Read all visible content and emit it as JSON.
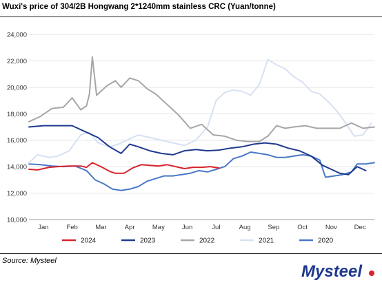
{
  "title": "Wuxi's price of 304/2B Hongwang 2*1240mm stainless CRC (Yuan/tonne)",
  "source": "Source: Mysteel",
  "logo_text": "Mysteel",
  "chart_data": {
    "type": "line",
    "title": "Wuxi's price of 304/2B Hongwang 2*1240mm stainless CRC (Yuan/tonne)",
    "xlabel": "",
    "ylabel": "",
    "x_ticks": [
      "Jan",
      "Feb",
      "Mar",
      "Apr",
      "May",
      "Jun",
      "Jul",
      "Aug",
      "Sep",
      "Oct",
      "Nov",
      "Dec"
    ],
    "y_ticks": [
      10000,
      12000,
      14000,
      16000,
      18000,
      20000,
      22000,
      24000
    ],
    "ylim": [
      10000,
      24000
    ],
    "xlim": [
      0,
      12
    ],
    "grid": true,
    "legend_position": "bottom",
    "series": [
      {
        "name": "2024",
        "color": "#d9232d",
        "points": [
          [
            0,
            13800
          ],
          [
            0.3,
            13750
          ],
          [
            0.7,
            13950
          ],
          [
            1.0,
            14000
          ],
          [
            1.4,
            14050
          ],
          [
            1.8,
            14050
          ],
          [
            2.0,
            13950
          ],
          [
            2.2,
            14300
          ],
          [
            2.5,
            14000
          ],
          [
            2.8,
            13650
          ],
          [
            3.0,
            13500
          ],
          [
            3.3,
            13500
          ],
          [
            3.6,
            13900
          ],
          [
            3.9,
            14150
          ],
          [
            4.2,
            14100
          ],
          [
            4.5,
            14050
          ],
          [
            4.8,
            14150
          ],
          [
            5.1,
            14000
          ],
          [
            5.4,
            13850
          ],
          [
            5.7,
            13950
          ],
          [
            6.0,
            13950
          ],
          [
            6.3,
            14000
          ],
          [
            6.6,
            13900
          ]
        ]
      },
      {
        "name": "2023",
        "color": "#1f3a8c",
        "points": [
          [
            0,
            17000
          ],
          [
            0.5,
            17100
          ],
          [
            1.0,
            17100
          ],
          [
            1.5,
            17100
          ],
          [
            2.0,
            16600
          ],
          [
            2.4,
            16200
          ],
          [
            2.8,
            15500
          ],
          [
            3.2,
            15000
          ],
          [
            3.5,
            15700
          ],
          [
            3.8,
            15500
          ],
          [
            4.2,
            15200
          ],
          [
            4.6,
            15000
          ],
          [
            5.0,
            14900
          ],
          [
            5.4,
            15200
          ],
          [
            5.8,
            15300
          ],
          [
            6.2,
            15200
          ],
          [
            6.6,
            15250
          ],
          [
            7.0,
            15400
          ],
          [
            7.4,
            15500
          ],
          [
            7.8,
            15700
          ],
          [
            8.2,
            15800
          ],
          [
            8.6,
            15700
          ],
          [
            9.0,
            15400
          ],
          [
            9.4,
            15200
          ],
          [
            9.8,
            14800
          ],
          [
            10.2,
            14100
          ],
          [
            10.5,
            13800
          ],
          [
            10.8,
            13500
          ],
          [
            11.1,
            13400
          ],
          [
            11.4,
            14000
          ],
          [
            11.7,
            13700
          ]
        ]
      },
      {
        "name": "2022",
        "color": "#a6a6a6",
        "points": [
          [
            0,
            17400
          ],
          [
            0.4,
            17800
          ],
          [
            0.8,
            18400
          ],
          [
            1.2,
            18500
          ],
          [
            1.5,
            19200
          ],
          [
            1.8,
            18300
          ],
          [
            2.0,
            18600
          ],
          [
            2.1,
            19500
          ],
          [
            2.2,
            22300
          ],
          [
            2.35,
            19400
          ],
          [
            2.7,
            20100
          ],
          [
            3.0,
            20500
          ],
          [
            3.2,
            20000
          ],
          [
            3.5,
            20700
          ],
          [
            3.8,
            20500
          ],
          [
            4.1,
            19900
          ],
          [
            4.4,
            19500
          ],
          [
            4.8,
            18700
          ],
          [
            5.2,
            17900
          ],
          [
            5.6,
            16900
          ],
          [
            6.0,
            17200
          ],
          [
            6.4,
            16400
          ],
          [
            6.8,
            16300
          ],
          [
            7.2,
            16000
          ],
          [
            7.6,
            15900
          ],
          [
            8.0,
            15900
          ],
          [
            8.3,
            16300
          ],
          [
            8.6,
            17100
          ],
          [
            8.9,
            16900
          ],
          [
            9.2,
            17000
          ],
          [
            9.6,
            17100
          ],
          [
            10.0,
            16900
          ],
          [
            10.4,
            16900
          ],
          [
            10.8,
            16900
          ],
          [
            11.2,
            17300
          ],
          [
            11.6,
            16900
          ],
          [
            12.0,
            17000
          ]
        ]
      },
      {
        "name": "2021",
        "color": "#d6e1f2",
        "points": [
          [
            0,
            14300
          ],
          [
            0.3,
            14900
          ],
          [
            0.7,
            14700
          ],
          [
            1.0,
            14800
          ],
          [
            1.4,
            15200
          ],
          [
            1.8,
            16400
          ],
          [
            2.1,
            16600
          ],
          [
            2.4,
            15800
          ],
          [
            2.8,
            15500
          ],
          [
            3.1,
            15700
          ],
          [
            3.4,
            16000
          ],
          [
            3.8,
            16400
          ],
          [
            4.2,
            16200
          ],
          [
            4.6,
            16000
          ],
          [
            5.0,
            15800
          ],
          [
            5.4,
            15600
          ],
          [
            5.8,
            16000
          ],
          [
            6.2,
            17000
          ],
          [
            6.5,
            19000
          ],
          [
            6.8,
            19600
          ],
          [
            7.1,
            19800
          ],
          [
            7.4,
            19700
          ],
          [
            7.7,
            19400
          ],
          [
            8.0,
            20200
          ],
          [
            8.3,
            22100
          ],
          [
            8.6,
            21700
          ],
          [
            8.9,
            21400
          ],
          [
            9.2,
            20800
          ],
          [
            9.5,
            20400
          ],
          [
            9.8,
            19700
          ],
          [
            10.1,
            19500
          ],
          [
            10.4,
            18900
          ],
          [
            10.7,
            18200
          ],
          [
            11.0,
            17300
          ],
          [
            11.3,
            16300
          ],
          [
            11.6,
            16400
          ],
          [
            11.9,
            17300
          ]
        ]
      },
      {
        "name": "2020",
        "color": "#4a78c8",
        "points": [
          [
            0,
            14200
          ],
          [
            0.4,
            14150
          ],
          [
            0.8,
            14050
          ],
          [
            1.2,
            14000
          ],
          [
            1.6,
            14050
          ],
          [
            2.0,
            13700
          ],
          [
            2.3,
            13000
          ],
          [
            2.6,
            12700
          ],
          [
            2.9,
            12300
          ],
          [
            3.2,
            12200
          ],
          [
            3.5,
            12300
          ],
          [
            3.8,
            12500
          ],
          [
            4.1,
            12900
          ],
          [
            4.4,
            13100
          ],
          [
            4.7,
            13300
          ],
          [
            5.0,
            13300
          ],
          [
            5.3,
            13400
          ],
          [
            5.6,
            13500
          ],
          [
            5.9,
            13700
          ],
          [
            6.2,
            13600
          ],
          [
            6.5,
            13800
          ],
          [
            6.8,
            14000
          ],
          [
            7.1,
            14600
          ],
          [
            7.4,
            14800
          ],
          [
            7.7,
            15100
          ],
          [
            8.0,
            15000
          ],
          [
            8.3,
            14900
          ],
          [
            8.6,
            14700
          ],
          [
            8.9,
            14700
          ],
          [
            9.2,
            14800
          ],
          [
            9.5,
            14900
          ],
          [
            9.8,
            14800
          ],
          [
            10.1,
            14500
          ],
          [
            10.3,
            13200
          ],
          [
            10.6,
            13300
          ],
          [
            10.9,
            13400
          ],
          [
            11.2,
            13600
          ],
          [
            11.4,
            14200
          ],
          [
            11.7,
            14200
          ],
          [
            12.0,
            14300
          ]
        ]
      }
    ]
  }
}
